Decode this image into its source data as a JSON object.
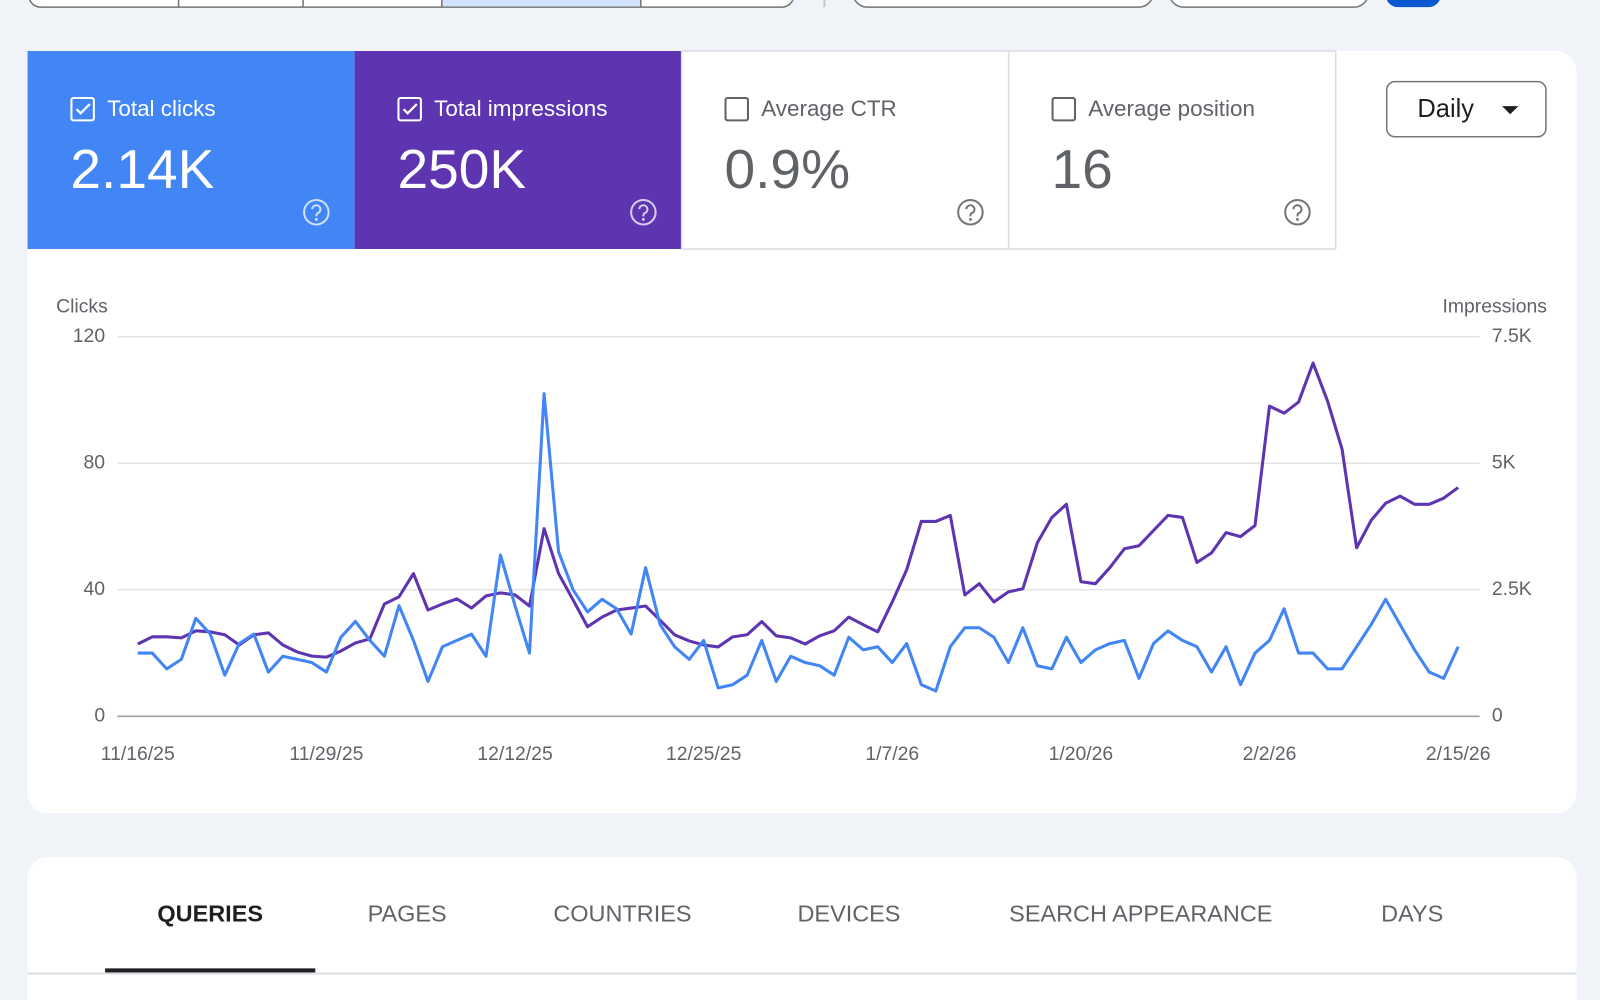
{
  "metrics": [
    {
      "label": "Total clicks",
      "value": "2.14K",
      "checked": true
    },
    {
      "label": "Total impressions",
      "value": "250K",
      "checked": true
    },
    {
      "label": "Average CTR",
      "value": "0.9%",
      "checked": false
    },
    {
      "label": "Average position",
      "value": "16",
      "checked": false
    }
  ],
  "interval": "Daily",
  "chart_data": {
    "type": "line",
    "y_label": "Clicks",
    "y2_label": "Impressions",
    "categories": [
      "11/16/25",
      null,
      null,
      null,
      null,
      null,
      null,
      null,
      null,
      null,
      null,
      null,
      null,
      "11/29/25",
      null,
      null,
      null,
      null,
      null,
      null,
      null,
      null,
      null,
      null,
      null,
      null,
      "12/12/25",
      null,
      null,
      null,
      null,
      null,
      null,
      null,
      null,
      null,
      null,
      null,
      null,
      "12/25/25",
      null,
      null,
      null,
      null,
      null,
      null,
      null,
      null,
      null,
      null,
      null,
      null,
      "1/7/26",
      null,
      null,
      null,
      null,
      null,
      null,
      null,
      null,
      null,
      null,
      null,
      null,
      "1/20/26",
      null,
      null,
      null,
      null,
      null,
      null,
      null,
      null,
      null,
      null,
      null,
      null,
      "2/2/26",
      null,
      null,
      null,
      null,
      null,
      null,
      null,
      null,
      null,
      null,
      null,
      null,
      "2/15/26"
    ],
    "series": [
      {
        "name": "Clicks",
        "color": "#4285f4",
        "axis": "y",
        "values": [
          20,
          20,
          15,
          18,
          31,
          26,
          13,
          23,
          26,
          14,
          19,
          18,
          17,
          14,
          25,
          30,
          24,
          19,
          35,
          24,
          11,
          22,
          24,
          26,
          19,
          51,
          35,
          20,
          102,
          52,
          40,
          33,
          37,
          34,
          26,
          47,
          29,
          22,
          18,
          24,
          9,
          10,
          13,
          24,
          11,
          19,
          17,
          16,
          13,
          25,
          21,
          22,
          17,
          23,
          10,
          8,
          22,
          28,
          28,
          25,
          17,
          28,
          16,
          15,
          25,
          17,
          21,
          23,
          24,
          12,
          23,
          27,
          24,
          22,
          14,
          22,
          10,
          20,
          24,
          34,
          20,
          20,
          15,
          15,
          22,
          29,
          37,
          29,
          21,
          14,
          12,
          22
        ]
      },
      {
        "name": "Impressions",
        "color": "#5e35b1",
        "axis": "y2",
        "values": [
          1430,
          1570,
          1570,
          1550,
          1690,
          1670,
          1610,
          1410,
          1610,
          1650,
          1410,
          1270,
          1190,
          1170,
          1290,
          1450,
          1530,
          2220,
          2360,
          2820,
          2100,
          2220,
          2320,
          2140,
          2380,
          2440,
          2400,
          2180,
          3710,
          2820,
          2300,
          1770,
          1960,
          2100,
          2140,
          2180,
          1900,
          1610,
          1490,
          1410,
          1370,
          1570,
          1610,
          1870,
          1590,
          1550,
          1430,
          1590,
          1690,
          1960,
          1810,
          1670,
          2260,
          2900,
          3850,
          3850,
          3970,
          2400,
          2620,
          2260,
          2460,
          2520,
          3430,
          3930,
          4190,
          2660,
          2620,
          2940,
          3310,
          3370,
          3670,
          3970,
          3930,
          3040,
          3230,
          3630,
          3550,
          3770,
          6130,
          5990,
          6210,
          6980,
          6230,
          5280,
          3330,
          3870,
          4210,
          4350,
          4190,
          4190,
          4310,
          4520
        ]
      }
    ],
    "ylim": [
      0,
      120
    ],
    "yticks": [
      0,
      40,
      80,
      120
    ],
    "y2lim": [
      0,
      7500
    ],
    "y2ticks": [
      0,
      {
        "value": 2500,
        "label": "2.5K"
      },
      {
        "value": 5000,
        "label": "5K"
      },
      {
        "value": 7500,
        "label": "7.5K"
      }
    ],
    "grid": true
  },
  "tabs": {
    "items": [
      "QUERIES",
      "PAGES",
      "COUNTRIES",
      "DEVICES",
      "SEARCH APPEARANCE",
      "DAYS"
    ],
    "active": 0
  }
}
